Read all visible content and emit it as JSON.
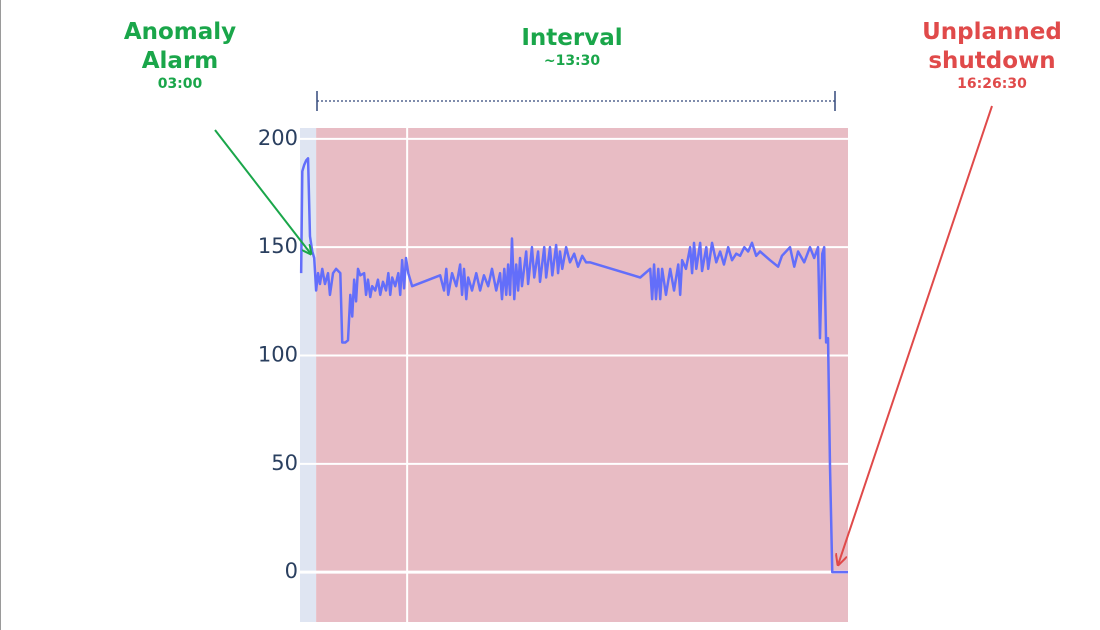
{
  "chart_data": {
    "type": "line",
    "color": "#636efa",
    "xlim": [
      2.58,
      16.85
    ],
    "xgrid": [
      5.37
    ],
    "ylim": [
      -23,
      205
    ],
    "yticks": [
      0,
      50,
      100,
      150,
      200
    ],
    "grid": true,
    "shading": [
      {
        "x0": 2.58,
        "x1": 3.0,
        "color": "#dfe5f2"
      },
      {
        "x0": 3.0,
        "x1": 16.85,
        "color": "#e8bcc4"
      }
    ],
    "annotations": {
      "alarm": {
        "text": "Anomaly Alarm",
        "time": "03:00",
        "color": "#1aa64a"
      },
      "interval": {
        "text": "Interval",
        "time": "~13:30",
        "color": "#1aa64a"
      },
      "shutdown": {
        "text": "Unplanned shutdown",
        "time": "16:26:30",
        "color": "#e04a4a"
      }
    },
    "x": [
      2.61,
      2.64,
      2.69,
      2.74,
      2.79,
      2.84,
      2.9,
      2.95,
      3.0,
      3.05,
      3.1,
      3.16,
      3.23,
      3.31,
      3.36,
      3.44,
      3.52,
      3.63,
      3.68,
      3.76,
      3.83,
      3.89,
      3.94,
      3.99,
      4.04,
      4.09,
      4.15,
      4.25,
      4.3,
      4.35,
      4.41,
      4.46,
      4.54,
      4.61,
      4.67,
      4.74,
      4.82,
      4.88,
      4.93,
      4.98,
      5.06,
      5.14,
      5.19,
      5.24,
      5.29,
      5.34,
      5.4,
      5.5,
      6.23,
      6.33,
      6.39,
      6.44,
      6.54,
      6.65,
      6.75,
      6.8,
      6.85,
      6.91,
      6.96,
      7.06,
      7.17,
      7.27,
      7.37,
      7.48,
      7.58,
      7.69,
      7.79,
      7.84,
      7.9,
      7.95,
      8.0,
      8.05,
      8.1,
      8.16,
      8.21,
      8.26,
      8.31,
      8.36,
      8.47,
      8.52,
      8.62,
      8.68,
      8.78,
      8.83,
      8.94,
      8.99,
      9.09,
      9.15,
      9.25,
      9.3,
      9.35,
      9.41,
      9.51,
      9.61,
      9.72,
      9.82,
      9.93,
      10.03,
      10.13,
      11.44,
      11.7,
      11.75,
      11.8,
      11.85,
      11.91,
      11.96,
      12.01,
      12.11,
      12.22,
      12.32,
      12.43,
      12.48,
      12.53,
      12.63,
      12.74,
      12.79,
      12.84,
      12.9,
      13.0,
      13.05,
      13.16,
      13.21,
      13.31,
      13.42,
      13.52,
      13.62,
      13.73,
      13.83,
      13.94,
      14.04,
      14.15,
      14.25,
      14.35,
      14.46,
      14.56,
      14.82,
      15.03,
      15.13,
      15.34,
      15.45,
      15.55,
      15.71,
      15.86,
      15.97,
      16.07,
      16.12,
      16.18,
      16.23,
      16.28,
      16.33,
      16.38,
      16.44,
      16.85
    ],
    "values": [
      138,
      185,
      188,
      190,
      191,
      155,
      148,
      145,
      130,
      138,
      133,
      140,
      133,
      138,
      128,
      138,
      140,
      138,
      106,
      106,
      107,
      128,
      118,
      135,
      125,
      140,
      137,
      138,
      128,
      135,
      127,
      132,
      130,
      135,
      128,
      134,
      130,
      138,
      128,
      136,
      132,
      138,
      128,
      144,
      131,
      145,
      138,
      132,
      137,
      130,
      140,
      128,
      138,
      132,
      142,
      128,
      140,
      126,
      136,
      130,
      138,
      130,
      137,
      132,
      140,
      130,
      138,
      126,
      140,
      128,
      142,
      128,
      154,
      126,
      142,
      130,
      145,
      132,
      148,
      133,
      150,
      136,
      148,
      134,
      150,
      136,
      150,
      137,
      151,
      138,
      148,
      140,
      150,
      143,
      147,
      141,
      146,
      143,
      143,
      136,
      140,
      126,
      142,
      126,
      140,
      126,
      140,
      128,
      140,
      130,
      142,
      128,
      144,
      140,
      150,
      138,
      152,
      140,
      152,
      139,
      150,
      140,
      152,
      143,
      148,
      142,
      150,
      144,
      147,
      146,
      150,
      148,
      152,
      146,
      148,
      144,
      141,
      146,
      150,
      141,
      148,
      143,
      150,
      145,
      150,
      108,
      147,
      150,
      106,
      108,
      50,
      0,
      0
    ]
  }
}
